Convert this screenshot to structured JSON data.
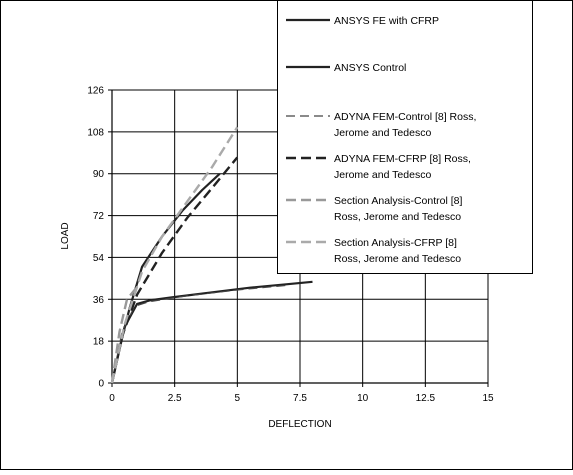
{
  "chart_data": {
    "type": "line",
    "xlabel": "DEFLECTION",
    "ylabel": "LOAD",
    "xlim": [
      0,
      15
    ],
    "ylim": [
      0,
      126
    ],
    "x_ticks": [
      "0",
      "2.5",
      "5",
      "7.5",
      "10",
      "12.5",
      "15"
    ],
    "y_ticks": [
      "0",
      "18",
      "36",
      "54",
      "72",
      "90",
      "108",
      "126"
    ],
    "grid": true,
    "legend_placement": "top-right",
    "series": [
      {
        "name": "ANSYS FE with CFRP",
        "color": "#222222",
        "style": "solid",
        "x": [
          0,
          0.3,
          0.7,
          1.2,
          2.0,
          2.8,
          3.6,
          4.3
        ],
        "y": [
          0,
          15,
          32,
          50,
          63,
          74,
          83,
          90
        ]
      },
      {
        "name": "ANSYS Control",
        "color": "#222222",
        "style": "solid",
        "x": [
          0,
          0.5,
          1.0,
          1.5,
          2.5,
          4.0,
          5.5,
          7.0,
          8.0
        ],
        "y": [
          0,
          24,
          34,
          35.5,
          37,
          39,
          41,
          42.5,
          43.5
        ]
      },
      {
        "name": "ADYNA FEM-Control [8] Ross, Jerome and Tedesco",
        "color": "#444444",
        "style": "dash-thin",
        "x": [
          0,
          0.4,
          0.9,
          1.5,
          3.0,
          5.0,
          7.0
        ],
        "y": [
          0,
          22,
          33,
          35,
          37.5,
          40,
          42
        ]
      },
      {
        "name": "ADYNA FEM-CFRP [8] Ross, Jerome and Tedesco",
        "color": "#222222",
        "style": "dash-thick",
        "x": [
          0,
          0.4,
          1.0,
          2.0,
          3.0,
          4.0,
          5.0
        ],
        "y": [
          0,
          20,
          38,
          56,
          71,
          84,
          97
        ]
      },
      {
        "name": "Section Analysis-Control [8] Ross, Jerome and Tedesco",
        "color": "#999999",
        "style": "dash-thick",
        "x": [
          0,
          0.3,
          0.6,
          0.9,
          1.1
        ],
        "y": [
          0,
          22,
          36,
          40,
          42
        ]
      },
      {
        "name": "Section Analysis-CFRP [8] Ross, Jerome and Tedesco",
        "color": "#aaaaaa",
        "style": "dash-thick",
        "x": [
          0,
          0.5,
          1.2,
          2.0,
          3.0,
          4.0,
          5.0
        ],
        "y": [
          0,
          25,
          48,
          63,
          78,
          93,
          110
        ]
      }
    ],
    "legend": [
      {
        "lines": [
          "ANSYS FE with CFRP"
        ]
      },
      {
        "lines": [
          "ANSYS Control"
        ]
      },
      {
        "lines": [
          "ADYNA FEM-Control [8] Ross,",
          "Jerome and Tedesco"
        ]
      },
      {
        "lines": [
          "ADYNA FEM-CFRP [8] Ross,",
          "Jerome and Tedesco"
        ]
      },
      {
        "lines": [
          "Section Analysis-Control [8]",
          "Ross, Jerome and Tedesco"
        ]
      },
      {
        "lines": [
          "Section Analysis-CFRP [8]",
          "Ross, Jerome and Tedesco"
        ]
      }
    ]
  }
}
